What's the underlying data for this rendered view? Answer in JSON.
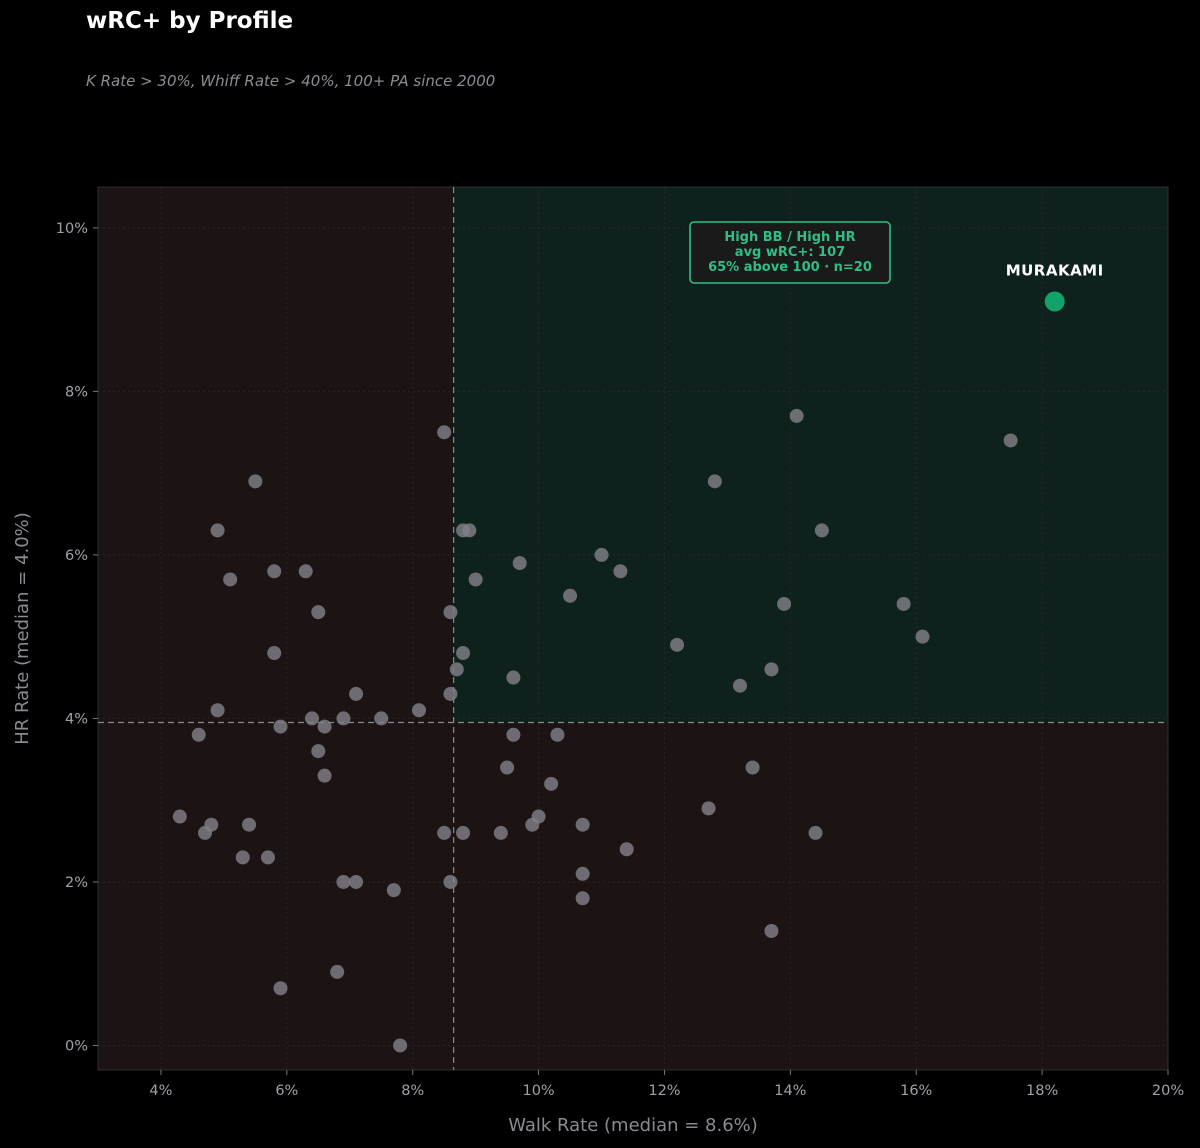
{
  "header": {
    "title": "wRC+ by Profile",
    "subtitle": "K Rate > 30%, Whiff Rate > 40%, 100+ PA since 2000"
  },
  "colors": {
    "background": "#000000",
    "plot_low": "#1c1414",
    "plot_high_quadrant": "#0f211c",
    "point": "#808088",
    "highlight": "#12a36a",
    "annotation": "#2fbf85"
  },
  "chart_data": {
    "type": "scatter",
    "title": "wRC+ by Profile",
    "subtitle": "K Rate > 30%, Whiff Rate > 40%, 100+ PA since 2000",
    "xlabel": "Walk Rate (median = 8.6%)",
    "ylabel": "HR Rate (median = 4.0%)",
    "xlim": [
      3,
      20
    ],
    "ylim": [
      -0.3,
      10.5
    ],
    "x_ticks": [
      4,
      6,
      8,
      10,
      12,
      14,
      16,
      18,
      20
    ],
    "x_tick_labels": [
      "4%",
      "6%",
      "8%",
      "10%",
      "12%",
      "14%",
      "16%",
      "18%",
      "20%"
    ],
    "y_ticks": [
      0,
      2,
      4,
      6,
      8,
      10
    ],
    "y_tick_labels": [
      "0%",
      "2%",
      "4%",
      "6%",
      "8%",
      "10%"
    ],
    "grid": true,
    "median_x": 8.65,
    "median_y": 3.95,
    "highlight": {
      "label": "MURAKAMI",
      "x": 18.2,
      "y": 9.1
    },
    "annotation": {
      "lines": [
        "High BB / High HR",
        "avg wRC+: 107",
        "65% above 100  ·  n=20"
      ],
      "x": 12.0,
      "y": 9.6
    },
    "points": [
      [
        7.8,
        0.0
      ],
      [
        5.9,
        0.7
      ],
      [
        6.8,
        0.9
      ],
      [
        13.7,
        1.4
      ],
      [
        10.7,
        1.8
      ],
      [
        7.7,
        1.9
      ],
      [
        6.9,
        2.0
      ],
      [
        7.1,
        2.0
      ],
      [
        8.6,
        2.0
      ],
      [
        10.7,
        2.1
      ],
      [
        5.3,
        2.3
      ],
      [
        5.7,
        2.3
      ],
      [
        11.4,
        2.4
      ],
      [
        4.7,
        2.6
      ],
      [
        8.5,
        2.6
      ],
      [
        8.8,
        2.6
      ],
      [
        9.4,
        2.6
      ],
      [
        14.4,
        2.6
      ],
      [
        4.8,
        2.7
      ],
      [
        5.4,
        2.7
      ],
      [
        9.9,
        2.7
      ],
      [
        10.7,
        2.7
      ],
      [
        4.3,
        2.8
      ],
      [
        10.0,
        2.8
      ],
      [
        12.7,
        2.9
      ],
      [
        10.2,
        3.2
      ],
      [
        6.6,
        3.3
      ],
      [
        9.5,
        3.4
      ],
      [
        13.4,
        3.4
      ],
      [
        6.5,
        3.6
      ],
      [
        4.6,
        3.8
      ],
      [
        9.6,
        3.8
      ],
      [
        10.3,
        3.8
      ],
      [
        5.9,
        3.9
      ],
      [
        6.6,
        3.9
      ],
      [
        6.4,
        4.0
      ],
      [
        6.9,
        4.0
      ],
      [
        7.5,
        4.0
      ],
      [
        4.9,
        4.1
      ],
      [
        8.1,
        4.1
      ],
      [
        7.1,
        4.3
      ],
      [
        8.6,
        4.3
      ],
      [
        13.2,
        4.4
      ],
      [
        9.6,
        4.5
      ],
      [
        8.7,
        4.6
      ],
      [
        13.7,
        4.6
      ],
      [
        5.8,
        4.8
      ],
      [
        8.8,
        4.8
      ],
      [
        12.2,
        4.9
      ],
      [
        16.1,
        5.0
      ],
      [
        6.5,
        5.3
      ],
      [
        8.6,
        5.3
      ],
      [
        13.9,
        5.4
      ],
      [
        15.8,
        5.4
      ],
      [
        10.5,
        5.5
      ],
      [
        5.1,
        5.7
      ],
      [
        9.0,
        5.7
      ],
      [
        5.8,
        5.8
      ],
      [
        6.3,
        5.8
      ],
      [
        11.3,
        5.8
      ],
      [
        9.7,
        5.9
      ],
      [
        11.0,
        6.0
      ],
      [
        4.9,
        6.3
      ],
      [
        8.8,
        6.3
      ],
      [
        8.9,
        6.3
      ],
      [
        14.5,
        6.3
      ],
      [
        5.5,
        6.9
      ],
      [
        12.8,
        6.9
      ],
      [
        17.5,
        7.4
      ],
      [
        8.5,
        7.5
      ],
      [
        14.1,
        7.7
      ]
    ]
  }
}
